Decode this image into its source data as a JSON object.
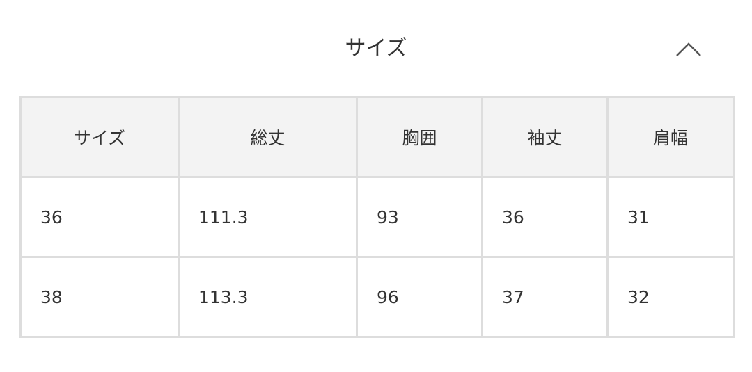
{
  "section": {
    "title": "サイズ",
    "toggle_icon": "chevron-up-icon"
  },
  "table": {
    "headers": [
      "サイズ",
      "総丈",
      "胸囲",
      "袖丈",
      "肩幅"
    ],
    "rows": [
      [
        "36",
        "111.3",
        "93",
        "36",
        "31"
      ],
      [
        "38",
        "113.3",
        "96",
        "37",
        "32"
      ]
    ]
  }
}
